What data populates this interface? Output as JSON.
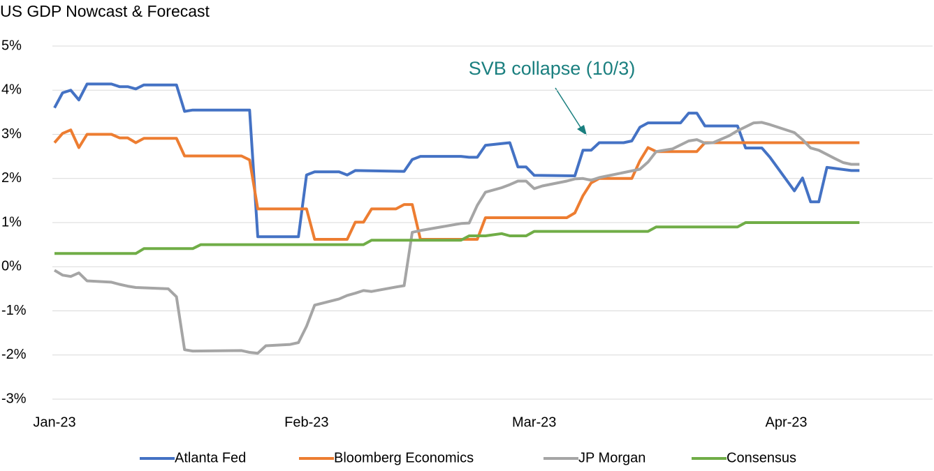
{
  "chart_data": {
    "type": "line",
    "title": "US GDP Nowcast & Forecast",
    "annotation": "SVB collapse (10/3)",
    "xlim": [
      0,
      108
    ],
    "xticks": [
      {
        "value": 0,
        "label": "Jan-23"
      },
      {
        "value": 31,
        "label": "Feb-23"
      },
      {
        "value": 59,
        "label": "Mar-23"
      },
      {
        "value": 90,
        "label": "Apr-23"
      }
    ],
    "ylim": [
      -3,
      5
    ],
    "yticks": [
      {
        "value": -3,
        "label": "-3%"
      },
      {
        "value": -2,
        "label": "-2%"
      },
      {
        "value": -1,
        "label": "-1%"
      },
      {
        "value": 0,
        "label": "0%"
      },
      {
        "value": 1,
        "label": "1%"
      },
      {
        "value": 2,
        "label": "2%"
      },
      {
        "value": 3,
        "label": "3%"
      },
      {
        "value": 4,
        "label": "4%"
      },
      {
        "value": 5,
        "label": "5%"
      }
    ],
    "grid": true,
    "legend": "bottom",
    "series": [
      {
        "name": "Atlanta Fed",
        "color": "#4472c4",
        "x": [
          0,
          1,
          2,
          3,
          4,
          7,
          8,
          9,
          10,
          11,
          15,
          16,
          17,
          24,
          25,
          30,
          31,
          32,
          35,
          36,
          37,
          43,
          44,
          45,
          50,
          51,
          52,
          53,
          56,
          57,
          58,
          59,
          64,
          65,
          66,
          67,
          70,
          71,
          72,
          73,
          77,
          78,
          79,
          80,
          84,
          85,
          87,
          88,
          91,
          92,
          93,
          94,
          95,
          98,
          99
        ],
        "values": [
          3.6,
          3.94,
          4.0,
          3.78,
          4.14,
          4.14,
          4.08,
          4.08,
          4.03,
          4.12,
          4.12,
          3.52,
          3.55,
          3.55,
          0.68,
          0.68,
          2.08,
          2.15,
          2.15,
          2.08,
          2.18,
          2.16,
          2.43,
          2.5,
          2.5,
          2.48,
          2.48,
          2.75,
          2.81,
          2.26,
          2.26,
          2.07,
          2.06,
          2.64,
          2.64,
          2.81,
          2.81,
          2.85,
          3.16,
          3.26,
          3.26,
          3.48,
          3.48,
          3.19,
          3.19,
          2.69,
          2.69,
          2.48,
          1.72,
          2.01,
          1.47,
          1.47,
          2.25,
          2.18,
          2.18
        ]
      },
      {
        "name": "Bloomberg Economics",
        "color": "#ed7d31",
        "x": [
          0,
          1,
          2,
          3,
          4,
          7,
          8,
          9,
          10,
          11,
          15,
          16,
          23,
          24,
          25,
          31,
          32,
          36,
          37,
          38,
          39,
          42,
          43,
          44,
          45,
          52,
          53,
          63,
          64,
          65,
          66,
          67,
          71,
          72,
          73,
          74,
          79,
          80,
          99
        ],
        "values": [
          2.81,
          3.02,
          3.1,
          2.7,
          3.0,
          3.0,
          2.92,
          2.92,
          2.81,
          2.91,
          2.91,
          2.51,
          2.51,
          2.42,
          1.31,
          1.31,
          0.62,
          0.62,
          1.01,
          1.01,
          1.31,
          1.31,
          1.41,
          1.41,
          0.62,
          0.62,
          1.11,
          1.11,
          1.22,
          1.61,
          1.9,
          2.0,
          2.0,
          2.4,
          2.7,
          2.61,
          2.61,
          2.81,
          2.81
        ]
      },
      {
        "name": "JP Morgan",
        "color": "#a5a5a5",
        "x": [
          0,
          1,
          2,
          3,
          4,
          7,
          8,
          9,
          10,
          14,
          15,
          16,
          17,
          23,
          24,
          25,
          26,
          29,
          30,
          31,
          32,
          35,
          36,
          37,
          38,
          39,
          42,
          43,
          44,
          45,
          50,
          51,
          52,
          53,
          55,
          56,
          57,
          58,
          59,
          60,
          63,
          64,
          65,
          66,
          67,
          72,
          73,
          74,
          76,
          78,
          79,
          80,
          81,
          83,
          84,
          86,
          87,
          88,
          91,
          92,
          93,
          94,
          96,
          97,
          98,
          99
        ],
        "values": [
          -0.08,
          -0.19,
          -0.22,
          -0.14,
          -0.32,
          -0.35,
          -0.4,
          -0.44,
          -0.47,
          -0.5,
          -0.68,
          -1.88,
          -1.91,
          -1.9,
          -1.94,
          -1.96,
          -1.79,
          -1.76,
          -1.72,
          -1.35,
          -0.87,
          -0.73,
          -0.65,
          -0.6,
          -0.54,
          -0.56,
          -0.46,
          -0.43,
          0.78,
          0.82,
          0.98,
          0.99,
          1.39,
          1.69,
          1.79,
          1.86,
          1.94,
          1.94,
          1.77,
          1.83,
          1.94,
          1.99,
          2.0,
          1.96,
          2.02,
          2.21,
          2.37,
          2.61,
          2.67,
          2.85,
          2.88,
          2.8,
          2.81,
          2.97,
          3.08,
          3.26,
          3.27,
          3.22,
          3.04,
          2.88,
          2.69,
          2.64,
          2.45,
          2.36,
          2.32,
          2.32
        ]
      },
      {
        "name": "Consensus",
        "color": "#70ad47",
        "x": [
          0,
          10,
          11,
          17,
          18,
          38,
          39,
          50,
          51,
          53,
          55,
          56,
          58,
          59,
          73,
          74,
          84,
          85,
          99
        ],
        "values": [
          0.3,
          0.3,
          0.41,
          0.41,
          0.5,
          0.5,
          0.6,
          0.6,
          0.7,
          0.7,
          0.75,
          0.7,
          0.7,
          0.8,
          0.8,
          0.9,
          0.9,
          1.0,
          1.0
        ]
      }
    ]
  }
}
